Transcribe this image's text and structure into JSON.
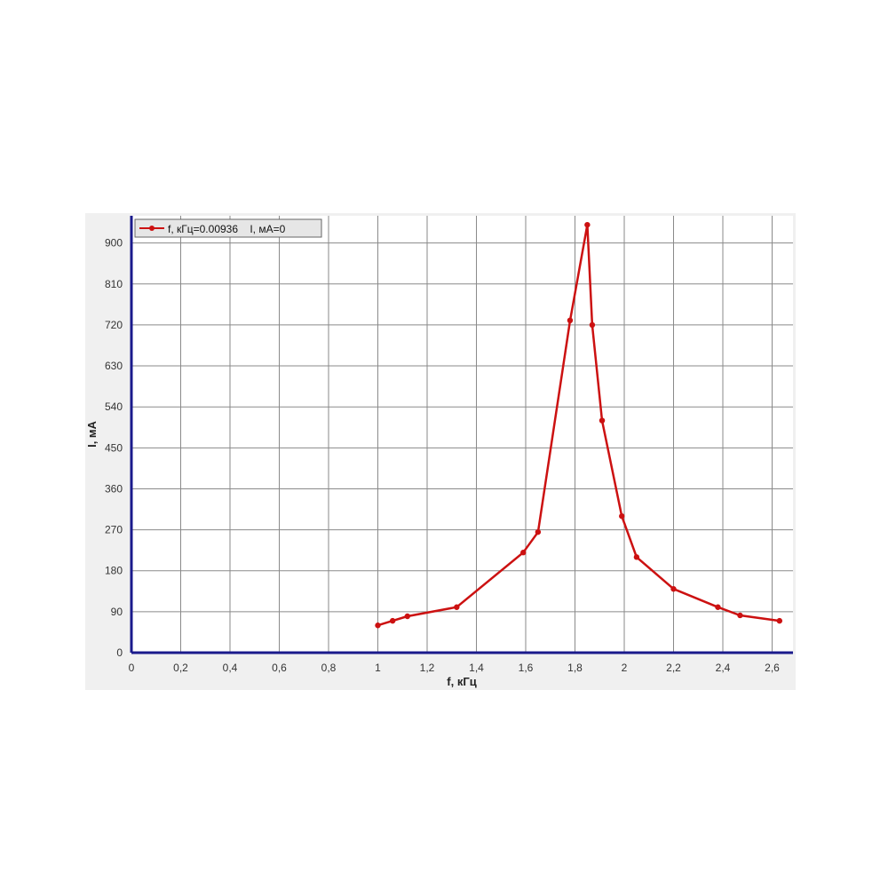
{
  "chart_data": {
    "type": "line",
    "title": "",
    "xlabel": "f, кГц",
    "ylabel": "I, мА",
    "xlim": [
      0,
      2.7
    ],
    "ylim": [
      0,
      945
    ],
    "x_ticks": [
      0,
      0.2,
      0.4,
      0.6,
      0.8,
      1,
      1.2,
      1.4,
      1.6,
      1.8,
      2,
      2.2,
      2.4,
      2.6
    ],
    "x_tick_labels": [
      "0",
      "0,2",
      "0,4",
      "0,6",
      "0,8",
      "1",
      "1,2",
      "1,4",
      "1,6",
      "1,8",
      "2",
      "2,2",
      "2,4",
      "2,6"
    ],
    "y_ticks": [
      0,
      90,
      180,
      270,
      360,
      450,
      540,
      630,
      720,
      810,
      900
    ],
    "y_tick_labels": [
      "0",
      "90",
      "180",
      "270",
      "360",
      "450",
      "540",
      "630",
      "720",
      "810",
      "900"
    ],
    "grid": true,
    "legend": {
      "position": "top-left",
      "text": "f, кГц=0.00936    I, мА=0"
    },
    "series": [
      {
        "color": "#cc1111",
        "points": [
          [
            1.0,
            60
          ],
          [
            1.06,
            70
          ],
          [
            1.12,
            80
          ],
          [
            1.32,
            100
          ],
          [
            1.59,
            220
          ],
          [
            1.65,
            265
          ],
          [
            1.78,
            730
          ],
          [
            1.85,
            940
          ],
          [
            1.87,
            720
          ],
          [
            1.91,
            510
          ],
          [
            1.99,
            300
          ],
          [
            2.05,
            210
          ],
          [
            2.2,
            140
          ],
          [
            2.38,
            100
          ],
          [
            2.47,
            82
          ],
          [
            2.63,
            70
          ]
        ]
      }
    ]
  }
}
